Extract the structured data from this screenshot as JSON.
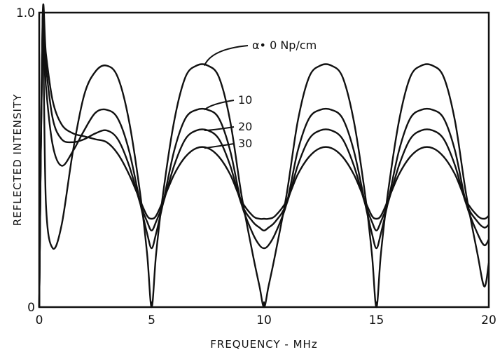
{
  "chart_data": {
    "type": "line",
    "title": "",
    "xlabel": "FREQUENCY - MHz",
    "ylabel": "REFLECTED INTENSITY",
    "xlim": [
      0,
      20
    ],
    "ylim": [
      0,
      1.0
    ],
    "x_ticks": [
      "0",
      "5",
      "10",
      "15",
      "20"
    ],
    "y_ticks": [
      "0",
      "1.0"
    ],
    "grid": false,
    "legend": "none",
    "line_color": "#111111",
    "series": [
      {
        "name": "α• 0 Np/cm",
        "peak": 0.82,
        "x": [
          0,
          0.15,
          0.3,
          0.6,
          1.0,
          1.5,
          2.0,
          2.5,
          3.0,
          3.5,
          4.0,
          4.5,
          4.8,
          5.0,
          5.2,
          5.5,
          6.0,
          6.5,
          7.0,
          7.5,
          8.0,
          8.5,
          9.0,
          9.5,
          9.8,
          10.0,
          10.2,
          10.5,
          11.0,
          11.5,
          12.0,
          12.5,
          13.0,
          13.5,
          14.0,
          14.5,
          14.8,
          15.0,
          15.2,
          15.5,
          16.0,
          16.5,
          17.0,
          17.5,
          18.0,
          18.5,
          19.0,
          19.5,
          19.8,
          20.0
        ],
        "y": [
          0.0,
          0.92,
          0.35,
          0.2,
          0.28,
          0.53,
          0.72,
          0.8,
          0.82,
          0.78,
          0.63,
          0.38,
          0.18,
          0.0,
          0.18,
          0.38,
          0.63,
          0.78,
          0.82,
          0.82,
          0.78,
          0.63,
          0.38,
          0.18,
          0.07,
          0.0,
          0.07,
          0.18,
          0.38,
          0.63,
          0.78,
          0.82,
          0.82,
          0.78,
          0.63,
          0.38,
          0.18,
          0.0,
          0.18,
          0.38,
          0.63,
          0.78,
          0.82,
          0.82,
          0.78,
          0.63,
          0.38,
          0.18,
          0.07,
          0.15
        ]
      },
      {
        "name": "10",
        "peak": 0.67,
        "x": [
          0,
          0.15,
          0.3,
          0.6,
          1.0,
          1.5,
          2.0,
          2.5,
          3.0,
          3.5,
          4.0,
          4.5,
          4.8,
          5.0,
          5.2,
          5.5,
          6.0,
          6.5,
          7.0,
          7.5,
          8.0,
          8.5,
          9.0,
          9.5,
          9.8,
          10.0,
          10.2,
          10.5,
          11.0,
          11.5,
          12.0,
          12.5,
          13.0,
          13.5,
          14.0,
          14.5,
          14.8,
          15.0,
          15.2,
          15.5,
          16.0,
          16.5,
          17.0,
          17.5,
          18.0,
          18.5,
          19.0,
          19.5,
          19.8,
          20.0
        ],
        "y": [
          0.0,
          0.95,
          0.75,
          0.55,
          0.48,
          0.53,
          0.6,
          0.66,
          0.67,
          0.64,
          0.53,
          0.35,
          0.25,
          0.2,
          0.25,
          0.35,
          0.53,
          0.64,
          0.67,
          0.67,
          0.64,
          0.53,
          0.35,
          0.25,
          0.21,
          0.2,
          0.21,
          0.25,
          0.35,
          0.53,
          0.64,
          0.67,
          0.67,
          0.64,
          0.53,
          0.35,
          0.25,
          0.2,
          0.25,
          0.35,
          0.53,
          0.64,
          0.67,
          0.67,
          0.64,
          0.53,
          0.35,
          0.25,
          0.21,
          0.23
        ]
      },
      {
        "name": "20",
        "peak": 0.6,
        "x": [
          0,
          0.15,
          0.3,
          0.6,
          1.0,
          1.5,
          2.0,
          2.5,
          3.0,
          3.5,
          4.0,
          4.5,
          4.8,
          5.0,
          5.2,
          5.5,
          6.0,
          6.5,
          7.0,
          7.5,
          8.0,
          8.5,
          9.0,
          9.5,
          9.8,
          10.0,
          10.2,
          10.5,
          11.0,
          11.5,
          12.0,
          12.5,
          13.0,
          13.5,
          14.0,
          14.5,
          14.8,
          15.0,
          15.2,
          15.5,
          16.0,
          16.5,
          17.0,
          17.5,
          18.0,
          18.5,
          19.0,
          19.5,
          19.8,
          20.0
        ],
        "y": [
          0.0,
          0.97,
          0.82,
          0.64,
          0.57,
          0.56,
          0.57,
          0.59,
          0.6,
          0.57,
          0.48,
          0.35,
          0.29,
          0.26,
          0.29,
          0.35,
          0.48,
          0.57,
          0.6,
          0.6,
          0.57,
          0.48,
          0.35,
          0.29,
          0.27,
          0.26,
          0.27,
          0.29,
          0.35,
          0.48,
          0.57,
          0.6,
          0.6,
          0.57,
          0.48,
          0.35,
          0.29,
          0.26,
          0.29,
          0.35,
          0.48,
          0.57,
          0.6,
          0.6,
          0.57,
          0.48,
          0.35,
          0.29,
          0.27,
          0.28
        ]
      },
      {
        "name": "30",
        "peak": 0.54,
        "x": [
          0,
          0.15,
          0.3,
          0.6,
          1.0,
          1.5,
          2.0,
          2.5,
          3.0,
          3.5,
          4.0,
          4.5,
          4.8,
          5.0,
          5.2,
          5.5,
          6.0,
          6.5,
          7.0,
          7.5,
          8.0,
          8.5,
          9.0,
          9.5,
          9.8,
          10.0,
          10.2,
          10.5,
          11.0,
          11.5,
          12.0,
          12.5,
          13.0,
          13.5,
          14.0,
          14.5,
          14.8,
          15.0,
          15.2,
          15.5,
          16.0,
          16.5,
          17.0,
          17.5,
          18.0,
          18.5,
          19.0,
          19.5,
          19.8,
          20.0
        ],
        "y": [
          0.0,
          0.98,
          0.86,
          0.7,
          0.62,
          0.59,
          0.58,
          0.57,
          0.56,
          0.52,
          0.45,
          0.36,
          0.31,
          0.3,
          0.31,
          0.36,
          0.45,
          0.51,
          0.54,
          0.54,
          0.51,
          0.45,
          0.36,
          0.31,
          0.3,
          0.3,
          0.3,
          0.31,
          0.36,
          0.45,
          0.51,
          0.54,
          0.54,
          0.51,
          0.45,
          0.36,
          0.31,
          0.3,
          0.31,
          0.36,
          0.45,
          0.51,
          0.54,
          0.54,
          0.51,
          0.45,
          0.36,
          0.31,
          0.3,
          0.31
        ]
      }
    ]
  }
}
